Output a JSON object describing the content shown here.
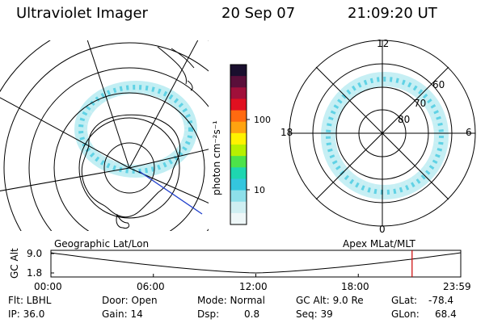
{
  "header": {
    "instrument": "Ultraviolet Imager",
    "date": "20 Sep 07",
    "time": "21:09:20 UT"
  },
  "colorbar": {
    "label": "photon cm⁻²s⁻¹",
    "ticks": [
      "100",
      "10"
    ],
    "colors": [
      "#1a0f2e",
      "#5a0f3a",
      "#a0103a",
      "#e01020",
      "#ff6a10",
      "#ffa310",
      "#fff200",
      "#b7f000",
      "#4de34a",
      "#1ed6b0",
      "#34c6de",
      "#8ee0ea",
      "#cfeff2",
      "#eef7f8"
    ]
  },
  "geographic_map": {
    "title": "Geographic Lat/Lon"
  },
  "apex_map": {
    "title": "Apex MLat/MLT",
    "mlt_labels": {
      "top": "12",
      "bottom": "0",
      "left": "18",
      "right": "6"
    },
    "lat_labels": [
      "60",
      "70",
      "80"
    ]
  },
  "altitude_plot": {
    "ylabel": "GC Alt",
    "yticks": [
      "9.0",
      "1.8"
    ],
    "xticks": [
      "00:00",
      "06:00",
      "12:00",
      "18:00",
      "23:59"
    ],
    "marker_time": "21:09"
  },
  "info": {
    "flt": "Flt: LBHL",
    "ip": "IP: 36.0",
    "door": "Door: Open",
    "gain": "Gain: 14",
    "mode": "Mode: Normal",
    "dsp_label": "Dsp:",
    "dsp_value": "0.8",
    "gc_alt": "GC Alt: 9.0 Re",
    "seq": "Seq: 39",
    "glat_label": "GLat:",
    "glat_value": "-78.4",
    "glon_label": "GLon:",
    "glon_value": "68.4"
  }
}
